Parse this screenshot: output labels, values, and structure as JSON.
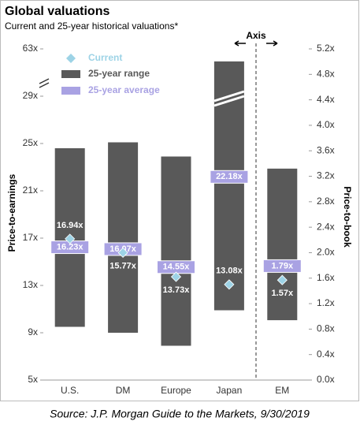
{
  "chart_data": {
    "type": "range_bar",
    "title": "Global valuations",
    "subtitle": "Current and 25-year historical valuations*",
    "ylabel": "Price-to-earnings",
    "y2label": "Price-to-book",
    "axis_note": "Axis",
    "source": "Source: J.P. Morgan Guide to the Markets, 9/30/2019",
    "categories": [
      "U.S.",
      "DM",
      "Europe",
      "Japan",
      "EM"
    ],
    "category_axes": [
      "y",
      "y",
      "y",
      "y",
      "y2"
    ],
    "series": [
      {
        "name": "Current",
        "color": "#9dd3e6",
        "values": [
          16.94,
          15.77,
          13.73,
          13.08,
          1.57
        ],
        "value_labels": [
          "16.94x",
          "15.77x",
          "13.73x",
          "13.08x",
          "1.57x"
        ]
      },
      {
        "name": "25-year range",
        "color": "#595959",
        "low": [
          9.5,
          9.0,
          7.9,
          10.9,
          0.94
        ],
        "high": [
          24.6,
          25.1,
          23.9,
          54,
          3.32
        ]
      },
      {
        "name": "25-year average",
        "color": "#a9a2e3",
        "values": [
          16.23,
          16.07,
          14.55,
          22.18,
          1.79
        ],
        "value_labels": [
          "16.23x",
          "16.07x",
          "14.55x",
          "22.18x",
          "1.79x"
        ]
      }
    ],
    "ylim": [
      5,
      63
    ],
    "axis_break": true,
    "yticks": [
      {
        "value": 5,
        "label": "5x"
      },
      {
        "value": 9,
        "label": "9x"
      },
      {
        "value": 13,
        "label": "13x"
      },
      {
        "value": 17,
        "label": "17x"
      },
      {
        "value": 21,
        "label": "21x"
      },
      {
        "value": 25,
        "label": "25x"
      },
      {
        "value": 29,
        "label": "29x"
      },
      {
        "value": 63,
        "label": "63x"
      }
    ],
    "y2lim": [
      0,
      5.2
    ],
    "y2ticks": [
      {
        "value": 0,
        "label": "0.0x"
      },
      {
        "value": 0.4,
        "label": "0.4x"
      },
      {
        "value": 0.8,
        "label": "0.8x"
      },
      {
        "value": 1.2,
        "label": "1.2x"
      },
      {
        "value": 1.6,
        "label": "1.6x"
      },
      {
        "value": 2.0,
        "label": "2.0x"
      },
      {
        "value": 2.4,
        "label": "2.4x"
      },
      {
        "value": 2.8,
        "label": "2.8x"
      },
      {
        "value": 3.2,
        "label": "3.2x"
      },
      {
        "value": 3.6,
        "label": "3.6x"
      },
      {
        "value": 4.0,
        "label": "4.0x"
      },
      {
        "value": 4.4,
        "label": "4.4x"
      },
      {
        "value": 4.8,
        "label": "4.8x"
      },
      {
        "value": 5.2,
        "label": "5.2x"
      }
    ]
  }
}
